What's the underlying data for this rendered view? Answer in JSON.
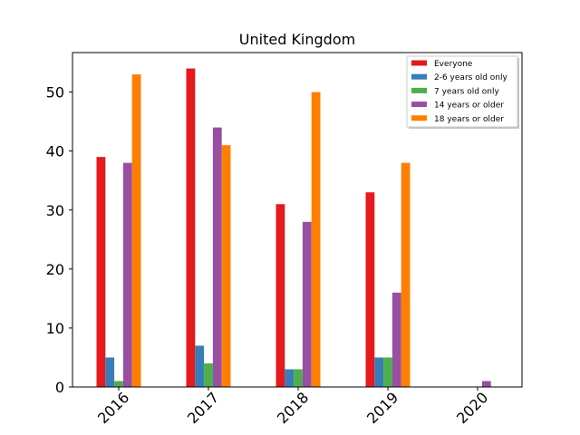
{
  "chart_data": {
    "type": "bar",
    "title": "United Kingdom",
    "xlabel": "",
    "ylabel": "",
    "categories": [
      "2016",
      "2017",
      "2018",
      "2019",
      "2020"
    ],
    "ylim": [
      0,
      56.7
    ],
    "yticks": [
      0,
      10,
      20,
      30,
      40,
      50
    ],
    "grid": false,
    "legend_position": "top-right",
    "series": [
      {
        "name": "Everyone",
        "color": "#e41a1c",
        "values": [
          39,
          54,
          31,
          33,
          0
        ]
      },
      {
        "name": "2-6 years old only",
        "color": "#377eb8",
        "values": [
          5,
          7,
          3,
          5,
          0
        ]
      },
      {
        "name": "7 years old only",
        "color": "#4daf4a",
        "values": [
          1,
          4,
          3,
          5,
          0
        ]
      },
      {
        "name": "14 years or older",
        "color": "#984ea3",
        "values": [
          38,
          44,
          28,
          16,
          1
        ]
      },
      {
        "name": "18 years or older",
        "color": "#ff7f00",
        "values": [
          53,
          41,
          50,
          38,
          0
        ]
      }
    ]
  }
}
